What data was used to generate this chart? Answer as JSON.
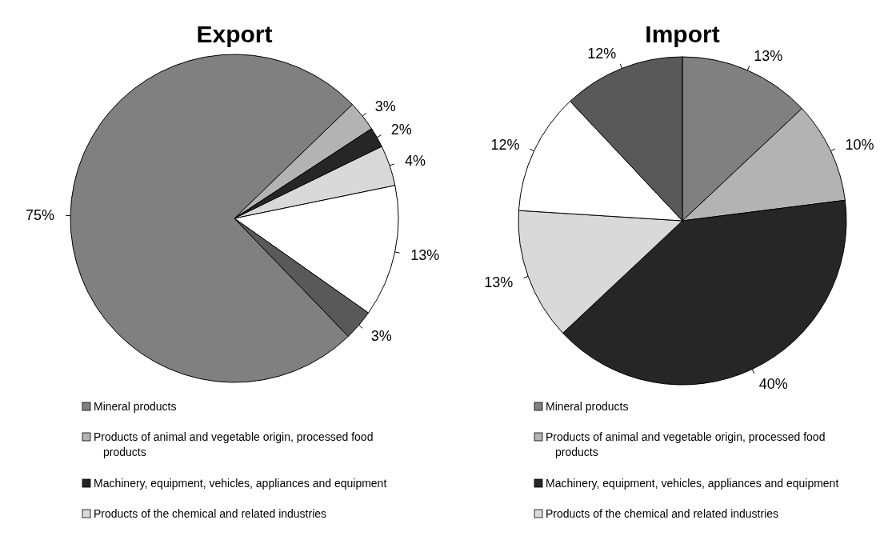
{
  "chart_data": [
    {
      "type": "pie",
      "title": "Export",
      "categories": [
        "Mineral products",
        "Products of animal and vegetable origin, processed food products",
        "Machinery, equipment, vehicles, appliances and equipment",
        "Products of the chemical and related industries",
        null,
        null
      ],
      "values": [
        75,
        3,
        2,
        4,
        13,
        3
      ],
      "colors": [
        "#808080",
        "#b3b3b3",
        "#262626",
        "#d9d9d9",
        "#ffffff",
        "#595959"
      ],
      "value_labels": [
        "75%",
        "3%",
        "2%",
        "4%",
        "13%",
        "3%"
      ],
      "legend": "bottom"
    },
    {
      "type": "pie",
      "title": "Import",
      "categories": [
        "Mineral products",
        "Products of animal and vegetable origin, processed food products",
        "Machinery, equipment, vehicles, appliances and equipment",
        "Products of the chemical and related industries",
        null,
        null
      ],
      "values": [
        13,
        10,
        40,
        13,
        12,
        12
      ],
      "colors": [
        "#808080",
        "#b3b3b3",
        "#262626",
        "#d9d9d9",
        "#ffffff",
        "#595959"
      ],
      "value_labels": [
        "13%",
        "10%",
        "40%",
        "13%",
        "12%",
        "12%"
      ],
      "legend": "bottom"
    }
  ]
}
